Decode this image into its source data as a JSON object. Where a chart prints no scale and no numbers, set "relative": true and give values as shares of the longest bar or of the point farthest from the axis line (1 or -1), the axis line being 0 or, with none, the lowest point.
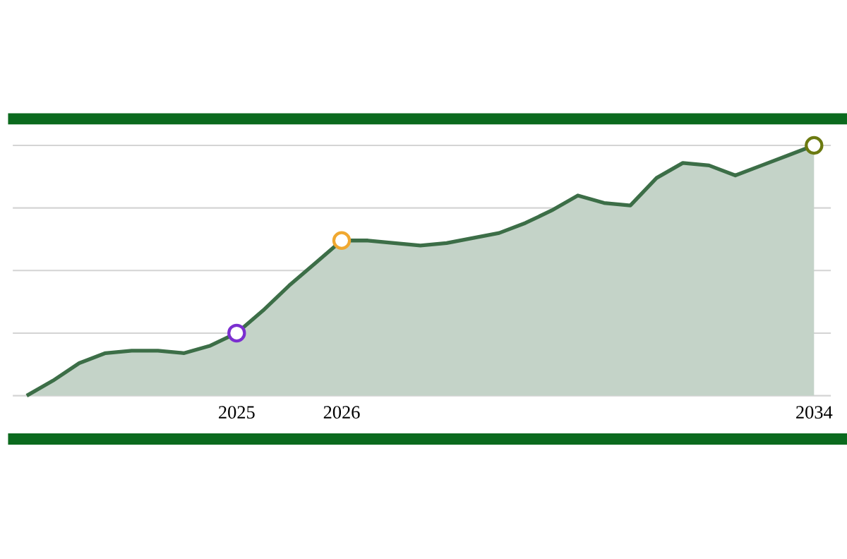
{
  "chart_data": {
    "type": "area",
    "relative": true,
    "grid": "y",
    "categories": [
      null,
      null,
      null,
      null,
      null,
      null,
      null,
      null,
      "2025",
      null,
      null,
      null,
      "2026",
      null,
      null,
      null,
      null,
      null,
      null,
      null,
      null,
      null,
      null,
      null,
      null,
      null,
      null,
      null,
      null,
      null,
      "2034"
    ],
    "series": [
      {
        "color": "#3c6e47",
        "values": [
          0,
          0.06,
          0.13,
          0.17,
          0.18,
          0.18,
          0.17,
          0.2,
          0.25,
          0.34,
          0.44,
          0.53,
          0.62,
          0.62,
          0.61,
          0.6,
          0.61,
          0.63,
          0.65,
          0.69,
          0.74,
          0.8,
          0.77,
          0.76,
          0.87,
          0.93,
          0.92,
          0.88,
          0.92,
          0.96,
          1
        ]
      },
      {
        "type": "scatter",
        "marker": "circle",
        "color": "#7b2fd0",
        "values": [
          null,
          null,
          null,
          null,
          null,
          null,
          null,
          null,
          0.25,
          null,
          null,
          null,
          null,
          null,
          null,
          null,
          null,
          null,
          null,
          null,
          null,
          null,
          null,
          null,
          null,
          null,
          null,
          null,
          null,
          null,
          null
        ]
      },
      {
        "type": "scatter",
        "marker": "circle",
        "color": "#f0a830",
        "values": [
          null,
          null,
          null,
          null,
          null,
          null,
          null,
          null,
          null,
          null,
          null,
          null,
          0.62,
          null,
          null,
          null,
          null,
          null,
          null,
          null,
          null,
          null,
          null,
          null,
          null,
          null,
          null,
          null,
          null,
          null,
          null
        ]
      },
      {
        "type": "scatter",
        "marker": "circle",
        "color": "#6b7a10",
        "values": [
          null,
          null,
          null,
          null,
          null,
          null,
          null,
          null,
          null,
          null,
          null,
          null,
          null,
          null,
          null,
          null,
          null,
          null,
          null,
          null,
          null,
          null,
          null,
          null,
          null,
          null,
          null,
          null,
          null,
          null,
          1
        ]
      }
    ]
  }
}
